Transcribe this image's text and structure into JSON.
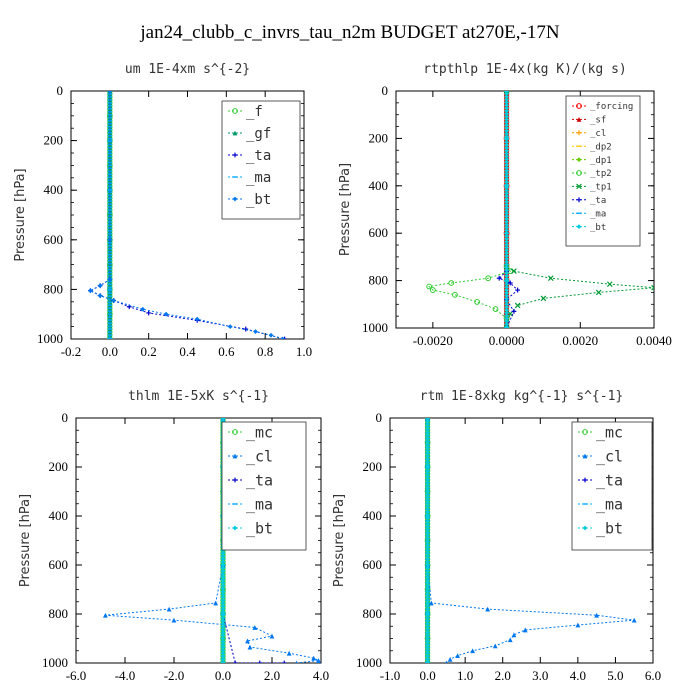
{
  "figure_title": "jan24_clubb_c_invrs_tau_n2m  BUDGET at270E,-17N",
  "chart_data": [
    {
      "type": "line",
      "title": "um  1E-4xm s^{-2}",
      "ylabel": "Pressure [hPa]",
      "xlim": [
        -0.2,
        1.0
      ],
      "ylim": [
        0,
        1000
      ],
      "xticks": [
        "-0.2",
        "0.0",
        "0.2",
        "0.4",
        "0.6",
        "0.8",
        "1.0"
      ],
      "yticks": [
        "0",
        "200",
        "400",
        "600",
        "800",
        "1000"
      ],
      "series": [
        {
          "name": "_f",
          "color": "#33cc33",
          "x": [
            0,
            0,
            0,
            0,
            0,
            0,
            0,
            0,
            0,
            0,
            0
          ],
          "y": [
            0,
            100,
            200,
            300,
            400,
            500,
            600,
            700,
            800,
            900,
            1000
          ]
        },
        {
          "name": "_gf",
          "color": "#009966",
          "x": [
            0,
            0,
            0,
            0,
            0,
            0,
            0,
            0,
            0,
            0,
            0
          ],
          "y": [
            0,
            100,
            200,
            300,
            400,
            500,
            600,
            700,
            800,
            900,
            1000
          ]
        },
        {
          "name": "_ta",
          "color": "#0000cc",
          "x": [
            0,
            0,
            0,
            -0.05,
            -0.1,
            -0.05,
            0.02,
            0.1,
            0.2,
            0.45,
            0.7,
            0.9
          ],
          "y": [
            0,
            600,
            760,
            785,
            805,
            825,
            845,
            870,
            895,
            925,
            960,
            1000
          ]
        },
        {
          "name": "_ma",
          "color": "#00aaff",
          "x": [
            0,
            0,
            0,
            0,
            0,
            0
          ],
          "y": [
            0,
            200,
            400,
            600,
            800,
            1000
          ]
        },
        {
          "name": "_bt",
          "color": "#0077ee",
          "x": [
            0,
            0,
            0,
            -0.05,
            -0.1,
            -0.05,
            0.02,
            0.17,
            0.29,
            0.45,
            0.62,
            0.75,
            0.83,
            0.89
          ],
          "y": [
            0,
            600,
            760,
            785,
            805,
            825,
            845,
            880,
            900,
            920,
            950,
            970,
            985,
            1000
          ]
        }
      ]
    },
    {
      "type": "line",
      "title": "rtpthlp  1E-4x(kg K)/(kg s)",
      "ylabel": "Pressure [hPa]",
      "xlim": [
        -0.003,
        0.004
      ],
      "ylim": [
        0,
        1000
      ],
      "xticks": [
        "-0.0020",
        "0.0000",
        "0.0020",
        "0.0040"
      ],
      "xtick_values": [
        -0.002,
        0,
        0.002,
        0.004
      ],
      "yticks": [
        "0",
        "200",
        "400",
        "600",
        "800",
        "1000"
      ],
      "series": [
        {
          "name": "_forcing",
          "color": "#ff0000",
          "x": [
            0,
            0,
            0,
            0,
            0,
            0
          ],
          "y": [
            0,
            200,
            400,
            600,
            800,
            1000
          ]
        },
        {
          "name": "_sf",
          "color": "#cc0000",
          "x": [
            0,
            0,
            0,
            0,
            0,
            0
          ],
          "y": [
            0,
            200,
            400,
            600,
            800,
            1000
          ]
        },
        {
          "name": "_cl",
          "color": "#ff9900",
          "x": [
            0,
            0,
            0,
            0,
            0,
            0
          ],
          "y": [
            0,
            200,
            400,
            600,
            800,
            1000
          ]
        },
        {
          "name": "_dp2",
          "color": "#ffcc00",
          "x": [
            0,
            0,
            0,
            0,
            0,
            0
          ],
          "y": [
            0,
            200,
            400,
            600,
            800,
            1000
          ]
        },
        {
          "name": "_dp1",
          "color": "#66cc00",
          "x": [
            0,
            0,
            0,
            0,
            0,
            0
          ],
          "y": [
            0,
            200,
            400,
            600,
            800,
            1000
          ]
        },
        {
          "name": "_tp2",
          "color": "#33cc33",
          "x": [
            0,
            0,
            0.0001,
            -0.0005,
            -0.0015,
            -0.0021,
            -0.002,
            -0.0014,
            -0.0008,
            -0.0003,
            0,
            0
          ],
          "y": [
            0,
            740,
            760,
            790,
            810,
            825,
            840,
            860,
            890,
            920,
            960,
            1000
          ]
        },
        {
          "name": "_tp1",
          "color": "#009933",
          "x": [
            0,
            0,
            0.0002,
            0.0012,
            0.0028,
            0.004,
            0.0025,
            0.001,
            0.0003,
            0.0001,
            0
          ],
          "y": [
            0,
            740,
            760,
            790,
            815,
            830,
            850,
            875,
            905,
            940,
            1000
          ]
        },
        {
          "name": "_ta",
          "color": "#0000cc",
          "x": [
            0,
            0,
            -0.0002,
            0.0001,
            0.0003,
            0,
            0.0002,
            0
          ],
          "y": [
            0,
            760,
            790,
            810,
            840,
            880,
            930,
            1000
          ]
        },
        {
          "name": "_ma",
          "color": "#00aaff",
          "x": [
            0,
            0,
            0,
            0,
            0,
            0
          ],
          "y": [
            0,
            200,
            400,
            600,
            800,
            1000
          ]
        },
        {
          "name": "_bt",
          "color": "#00ccdd",
          "x": [
            0,
            0,
            0,
            0,
            0,
            0
          ],
          "y": [
            0,
            200,
            400,
            600,
            800,
            1000
          ]
        }
      ]
    },
    {
      "type": "line",
      "title": "thlm  1E-5xK s^{-1}",
      "ylabel": "Pressure [hPa]",
      "xlim": [
        -6.0,
        4.0
      ],
      "ylim": [
        0,
        1000
      ],
      "xticks": [
        "-6.0",
        "-4.0",
        "-2.0",
        "0.0",
        "2.0",
        "4.0"
      ],
      "yticks": [
        "0",
        "200",
        "400",
        "600",
        "800",
        "1000"
      ],
      "series": [
        {
          "name": "_mc",
          "color": "#33cc33",
          "x": [
            0,
            0,
            0,
            0,
            0,
            0,
            0,
            0,
            0,
            0,
            0
          ],
          "y": [
            0,
            100,
            200,
            300,
            400,
            500,
            600,
            700,
            800,
            900,
            1000
          ]
        },
        {
          "name": "_cl",
          "color": "#0077ee",
          "x": [
            0,
            0,
            -0.3,
            -2.2,
            -4.8,
            -2.0,
            1.3,
            2.0,
            1.0,
            1.1,
            2.7,
            3.7,
            3.9,
            3.0
          ],
          "y": [
            0,
            600,
            755,
            780,
            805,
            825,
            855,
            890,
            910,
            935,
            960,
            980,
            990,
            1000
          ]
        },
        {
          "name": "_ta",
          "color": "#0000cc",
          "x": [
            0,
            0,
            0,
            0.5,
            1.5,
            2.5
          ],
          "y": [
            0,
            600,
            800,
            1000,
            1000,
            1000
          ]
        },
        {
          "name": "_ma",
          "color": "#00aaff",
          "x": [
            0,
            0,
            0,
            0,
            0,
            0
          ],
          "y": [
            0,
            200,
            400,
            600,
            800,
            1000
          ]
        },
        {
          "name": "_bt",
          "color": "#00ccdd",
          "x": [
            0,
            0,
            0,
            0,
            0,
            0
          ],
          "y": [
            0,
            200,
            400,
            600,
            800,
            1000
          ]
        }
      ]
    },
    {
      "type": "line",
      "title": "rtm  1E-8xkg kg^{-1} s^{-1}",
      "ylabel": "Pressure [hPa]",
      "xlim": [
        -1.0,
        6.0
      ],
      "ylim": [
        0,
        1000
      ],
      "xticks": [
        "-1.0",
        "0.0",
        "1.0",
        "2.0",
        "3.0",
        "4.0",
        "5.0",
        "6.0"
      ],
      "yticks": [
        "0",
        "200",
        "400",
        "600",
        "800",
        "1000"
      ],
      "series": [
        {
          "name": "_mc",
          "color": "#33cc33",
          "x": [
            0,
            0,
            0,
            0,
            0,
            0,
            0,
            0,
            0,
            0,
            0
          ],
          "y": [
            0,
            100,
            200,
            300,
            400,
            500,
            600,
            700,
            800,
            900,
            1000
          ]
        },
        {
          "name": "_cl",
          "color": "#0077ee",
          "x": [
            0,
            0,
            0.1,
            1.6,
            4.5,
            5.5,
            4.0,
            2.6,
            2.3,
            2.2,
            1.8,
            1.2,
            0.8,
            0.6,
            0.5
          ],
          "y": [
            0,
            600,
            755,
            780,
            805,
            825,
            845,
            865,
            885,
            905,
            930,
            950,
            970,
            985,
            1000
          ]
        },
        {
          "name": "_ta",
          "color": "#0000cc",
          "x": [
            0,
            0,
            0,
            0,
            0,
            0
          ],
          "y": [
            0,
            200,
            400,
            600,
            800,
            1000
          ]
        },
        {
          "name": "_ma",
          "color": "#00aaff",
          "x": [
            0,
            0,
            0,
            0,
            0,
            0
          ],
          "y": [
            0,
            200,
            400,
            600,
            800,
            1000
          ]
        },
        {
          "name": "_bt",
          "color": "#00ccdd",
          "x": [
            0,
            0,
            0,
            0,
            0,
            0
          ],
          "y": [
            0,
            200,
            400,
            600,
            800,
            1000
          ]
        }
      ]
    }
  ]
}
